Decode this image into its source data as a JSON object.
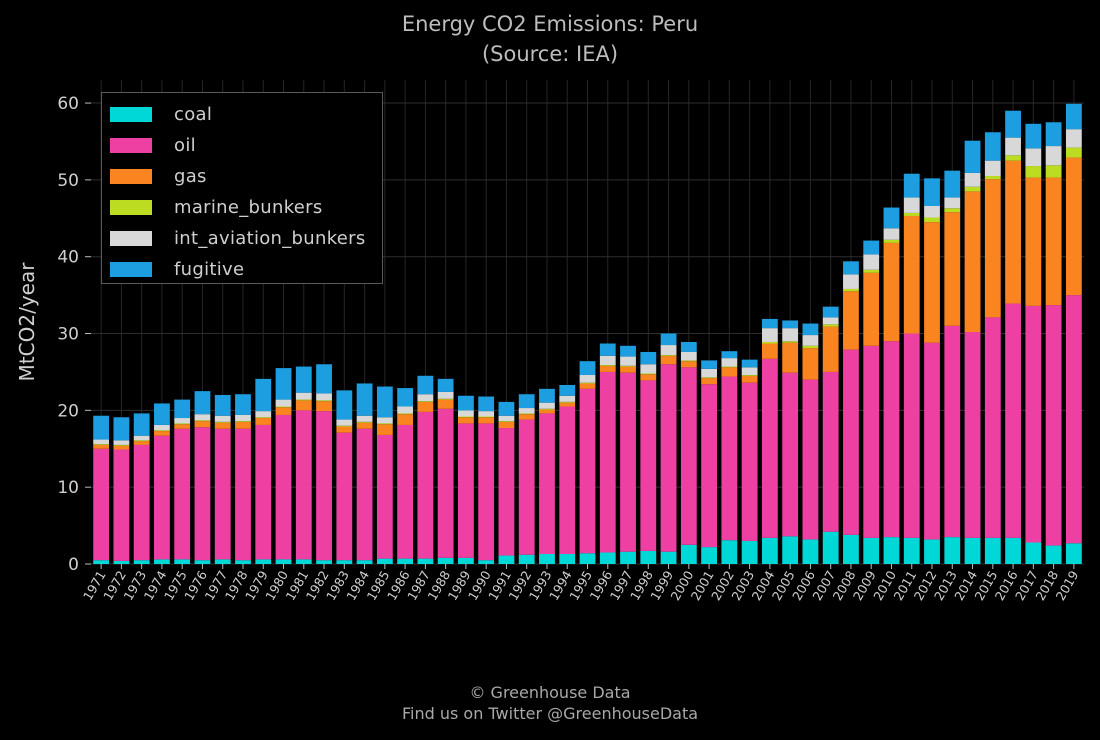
{
  "title": "Energy CO2 Emissions: Peru",
  "subtitle": "(Source: IEA)",
  "footer": {
    "line1": "© Greenhouse Data",
    "line2": "Find us on Twitter @GreenhouseData"
  },
  "colors": {
    "coal": "#00d8d8",
    "oil": "#ee3fa3",
    "gas": "#fa8520",
    "marine_bunkers": "#bcdc22",
    "int_aviation_bunkers": "#d8d8d8",
    "fugitive": "#1d9ee0"
  },
  "chart_data": {
    "type": "bar",
    "stacked": true,
    "title": "Energy CO2 Emissions: Peru",
    "subtitle": "(Source: IEA)",
    "xlabel": "",
    "ylabel": "MtCO2/year",
    "ylim": [
      0,
      63
    ],
    "yticks": [
      0,
      10,
      20,
      30,
      40,
      50,
      60
    ],
    "grid": true,
    "legend_position": "top-left",
    "categories": [
      "1971",
      "1972",
      "1973",
      "1974",
      "1975",
      "1976",
      "1977",
      "1978",
      "1979",
      "1980",
      "1981",
      "1982",
      "1983",
      "1984",
      "1985",
      "1986",
      "1987",
      "1988",
      "1989",
      "1990",
      "1991",
      "1992",
      "1993",
      "1994",
      "1995",
      "1996",
      "1997",
      "1998",
      "1999",
      "2000",
      "2001",
      "2002",
      "2003",
      "2004",
      "2005",
      "2006",
      "2007",
      "2008",
      "2009",
      "2010",
      "2011",
      "2012",
      "2013",
      "2014",
      "2015",
      "2016",
      "2017",
      "2018",
      "2019"
    ],
    "series": [
      {
        "name": "coal",
        "values": [
          0.5,
          0.4,
          0.5,
          0.6,
          0.6,
          0.5,
          0.6,
          0.5,
          0.6,
          0.6,
          0.6,
          0.5,
          0.5,
          0.5,
          0.7,
          0.7,
          0.7,
          0.8,
          0.8,
          0.5,
          1.1,
          1.2,
          1.3,
          1.3,
          1.4,
          1.5,
          1.6,
          1.7,
          1.6,
          2.5,
          2.2,
          3.1,
          3.0,
          3.4,
          3.6,
          3.2,
          4.2,
          3.8,
          3.4,
          3.5,
          3.4,
          3.2,
          3.5,
          3.4,
          3.4,
          3.4,
          2.8,
          2.4,
          2.7
        ]
      },
      {
        "name": "oil",
        "values": [
          14.5,
          14.5,
          15.0,
          16.1,
          17.0,
          17.3,
          17.0,
          17.1,
          17.5,
          18.8,
          19.4,
          19.4,
          16.6,
          17.1,
          16.1,
          17.4,
          19.1,
          19.4,
          17.5,
          17.8,
          16.6,
          17.6,
          18.3,
          19.2,
          21.4,
          23.5,
          23.3,
          22.2,
          24.4,
          23.1,
          21.2,
          21.3,
          20.6,
          23.3,
          21.3,
          20.8,
          20.8,
          24.1,
          25.0,
          25.5,
          26.6,
          25.6,
          27.5,
          26.8,
          28.7,
          30.5,
          30.8,
          31.3,
          32.3
        ]
      },
      {
        "name": "gas",
        "values": [
          0.5,
          0.5,
          0.5,
          0.6,
          0.6,
          0.8,
          0.8,
          0.9,
          0.9,
          1.0,
          1.3,
          1.3,
          0.8,
          0.8,
          1.4,
          1.4,
          1.3,
          1.2,
          0.8,
          0.8,
          0.8,
          0.7,
          0.5,
          0.5,
          0.7,
          0.8,
          0.8,
          0.8,
          1.1,
          0.8,
          0.8,
          1.2,
          0.9,
          2.0,
          3.9,
          4.1,
          5.9,
          7.6,
          9.5,
          12.8,
          15.3,
          15.7,
          14.8,
          18.3,
          18.0,
          18.6,
          16.7,
          16.6,
          17.9
        ]
      },
      {
        "name": "marine_bunkers",
        "values": [
          0.1,
          0.1,
          0.1,
          0.1,
          0.1,
          0.1,
          0.1,
          0.1,
          0.1,
          0.1,
          0.1,
          0.1,
          0.1,
          0.1,
          0.1,
          0.1,
          0.1,
          0.1,
          0.1,
          0.1,
          0.1,
          0.1,
          0.1,
          0.1,
          0.1,
          0.1,
          0.1,
          0.1,
          0.1,
          0.1,
          0.1,
          0.1,
          0.1,
          0.2,
          0.2,
          0.3,
          0.3,
          0.3,
          0.4,
          0.4,
          0.4,
          0.6,
          0.5,
          0.6,
          0.4,
          0.7,
          1.5,
          1.6,
          1.3
        ]
      },
      {
        "name": "int_aviation_bunkers",
        "values": [
          0.6,
          0.6,
          0.6,
          0.7,
          0.7,
          0.8,
          0.8,
          0.8,
          0.8,
          0.9,
          0.9,
          0.9,
          0.8,
          0.8,
          0.8,
          0.9,
          0.9,
          0.9,
          0.8,
          0.7,
          0.7,
          0.7,
          0.8,
          0.8,
          1.0,
          1.2,
          1.2,
          1.2,
          1.3,
          1.1,
          1.1,
          1.1,
          1.0,
          1.8,
          1.7,
          1.4,
          0.9,
          1.9,
          2.0,
          1.5,
          2.0,
          1.5,
          1.4,
          1.8,
          2.0,
          2.3,
          2.3,
          2.5,
          2.4
        ]
      },
      {
        "name": "fugitive",
        "values": [
          3.1,
          3.0,
          2.9,
          2.8,
          2.4,
          3.0,
          2.7,
          2.7,
          4.2,
          4.1,
          3.4,
          3.8,
          3.8,
          4.2,
          4.0,
          2.4,
          2.4,
          1.7,
          1.9,
          1.9,
          1.8,
          1.8,
          1.8,
          1.4,
          1.8,
          1.6,
          1.4,
          1.6,
          1.5,
          1.3,
          1.1,
          0.9,
          1.0,
          1.2,
          1.0,
          1.5,
          1.4,
          1.7,
          1.8,
          2.7,
          3.1,
          3.6,
          3.5,
          4.2,
          3.7,
          3.5,
          3.2,
          3.1,
          3.3
        ]
      }
    ]
  }
}
